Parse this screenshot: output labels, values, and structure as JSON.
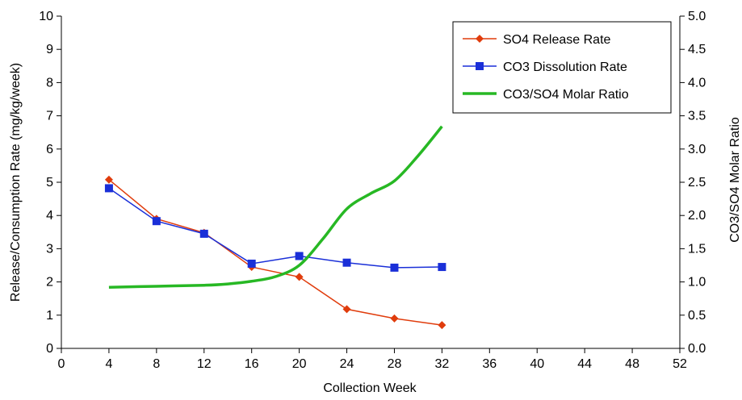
{
  "chart_data": {
    "type": "line",
    "title": "",
    "xlabel": "Collection Week",
    "ylabel": "Release/Consumption Rate (mg/kg/week)",
    "y2label": "CO3/SO4 Molar Ratio",
    "xlim": [
      0,
      52
    ],
    "ylim": [
      0,
      10
    ],
    "y2lim": [
      0,
      5
    ],
    "x_ticks": [
      0,
      4,
      8,
      12,
      16,
      20,
      24,
      28,
      32,
      36,
      40,
      44,
      48,
      52
    ],
    "y_ticks": [
      0,
      1,
      2,
      3,
      4,
      5,
      6,
      7,
      8,
      9,
      10
    ],
    "y2_ticks": [
      "0.0",
      "0.5",
      "1.0",
      "1.5",
      "2.0",
      "2.5",
      "3.0",
      "3.5",
      "4.0",
      "4.5",
      "5.0"
    ],
    "grid": false,
    "legend_position": "top-right",
    "series": [
      {
        "name": "SO4 Release Rate",
        "axis": "left",
        "color": "#e03c0c",
        "marker": "diamond",
        "x": [
          4,
          8,
          12,
          16,
          20,
          24,
          28,
          32
        ],
        "y": [
          5.08,
          3.9,
          3.48,
          2.45,
          2.15,
          1.18,
          0.9,
          0.7
        ]
      },
      {
        "name": "CO3 Dissolution Rate",
        "axis": "left",
        "color": "#1a2fd8",
        "marker": "square",
        "x": [
          4,
          8,
          12,
          16,
          20,
          24,
          28,
          32
        ],
        "y": [
          4.82,
          3.83,
          3.45,
          2.55,
          2.78,
          2.58,
          2.43,
          2.45
        ]
      },
      {
        "name": "CO3/SO4 Molar Ratio",
        "axis": "right",
        "color": "#27b824",
        "marker": "none",
        "x": [
          4,
          8,
          12,
          14,
          16,
          18,
          20,
          22,
          24,
          26,
          28,
          30,
          32
        ],
        "y": [
          0.92,
          0.935,
          0.95,
          0.97,
          1.01,
          1.08,
          1.25,
          1.65,
          2.1,
          2.33,
          2.52,
          2.9,
          3.34
        ]
      }
    ]
  }
}
